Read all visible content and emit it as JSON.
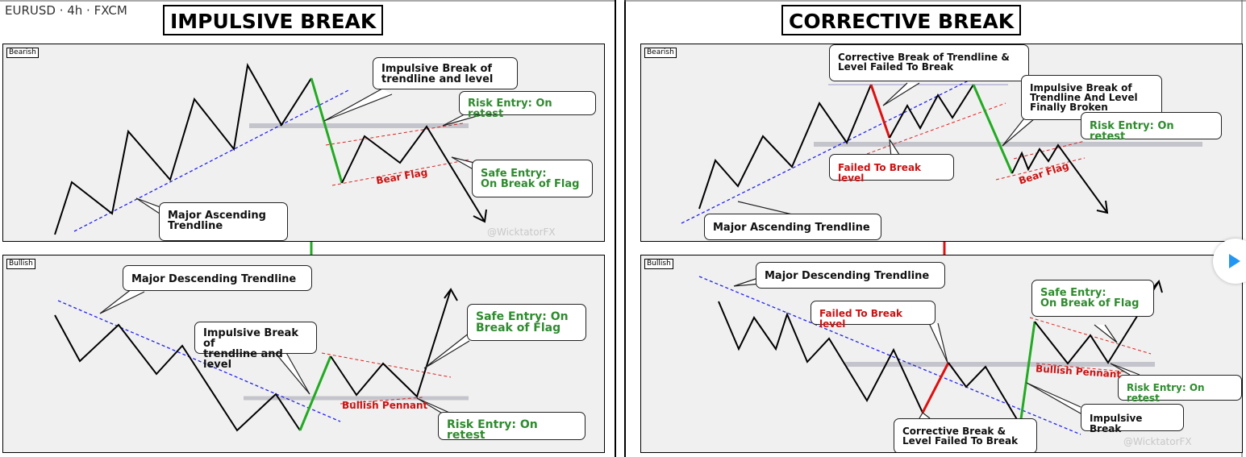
{
  "header": {
    "symbol_info": "EURUSD · 4h · FXCM"
  },
  "left": {
    "title": "IMPULSIVE BREAK",
    "bearish": {
      "tag": "Bearish",
      "callouts": {
        "impulsive": "Impulsive Break of\ntrendline and level",
        "risk": "Risk Entry: On retest",
        "safe": "Safe Entry:\nOn Break of Flag",
        "major": "Major Ascending\nTrendline"
      },
      "bear_flag": "Bear Flag",
      "watermark": "@WicktatorFX"
    },
    "bullish": {
      "tag": "Bullish",
      "callouts": {
        "major": "Major Descending Trendline",
        "impulsive": "Impulsive Break of\ntrendline and level",
        "safe": "Safe Entry: On\nBreak of Flag",
        "risk": "Risk Entry: On retest"
      },
      "pennant": "Bullish Pennant"
    }
  },
  "right": {
    "title": "CORRECTIVE BREAK",
    "bearish": {
      "tag": "Bearish",
      "callouts": {
        "corrective": "Corrective Break of Trendline &\nLevel Failed To Break",
        "impulsive": "Impulsive Break of\nTrendline And Level\nFinally Broken",
        "risk": "Risk Entry: On retest",
        "failed": "Failed To Break level",
        "major": "Major Ascending Trendline"
      },
      "bear_flag": "Bear Flag"
    },
    "bullish": {
      "tag": "Bullish",
      "callouts": {
        "major": "Major Descending Trendline",
        "failed": "Failed To Break level",
        "safe": "Safe Entry:\nOn Break of Flag",
        "risk": "Risk Entry: On retest",
        "impulsive": "Impulsive Break",
        "corrective": "Corrective Break &\nLevel Failed To Break"
      },
      "pennant": "Bullish Pennant",
      "watermark": "@WicktatorFX"
    }
  },
  "colors": {
    "price": "#000000",
    "impulse": "#22aa22",
    "corrective": "#dd1111",
    "trendline": "#2222ee",
    "flag": "#dd2222",
    "level": "#c4c4cc",
    "panel_bg": "#f0f0f0"
  }
}
